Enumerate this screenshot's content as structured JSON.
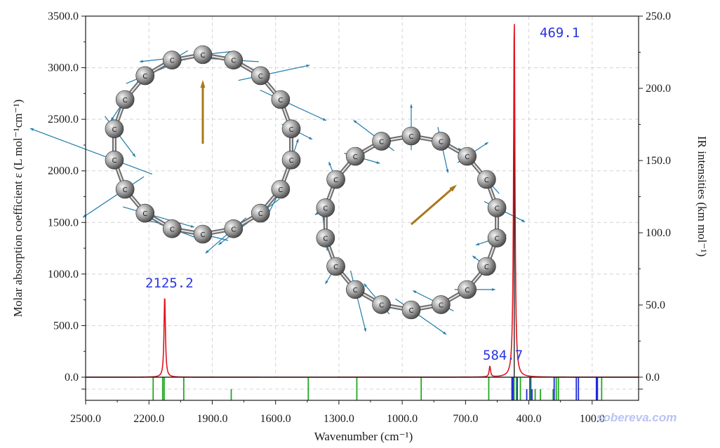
{
  "chart_data": {
    "type": "line",
    "xlabel": "Wavenumber (cm⁻¹)",
    "ylabel_left": "Molar absorption coefficient  ε (L mol⁻¹cm⁻¹)",
    "ylabel_right": "IR intensities (km mol⁻¹)",
    "xlim": [
      2500,
      -120
    ],
    "ylim_left": [
      0,
      3500
    ],
    "ylim_right": [
      0,
      250
    ],
    "x_ticks": [
      "2500.0",
      "2200.0",
      "1900.0",
      "1600.0",
      "1300.0",
      "1000.0",
      "700.0",
      "400.0",
      "100.0"
    ],
    "y_left_ticks": [
      "0.0",
      "500.0",
      "1000.0",
      "1500.0",
      "2000.0",
      "2500.0",
      "3000.0",
      "3500.0"
    ],
    "y_right_ticks": [
      "0.0",
      "50.0",
      "100.0",
      "150.0",
      "200.0",
      "250.0"
    ],
    "grid": true,
    "series": [
      {
        "color": "#e0141e",
        "peaks": [
          {
            "x": 2125.2,
            "y": 790
          },
          {
            "x": 584.7,
            "y": 105
          },
          {
            "x": 469.1,
            "y": 3500
          }
        ]
      }
    ],
    "ir_sticks": [
      {
        "x": 469.1,
        "y": 225,
        "color": "#000000"
      }
    ],
    "annotations": [
      "2125.2",
      "584.7",
      "469.1"
    ],
    "vibration_lines": {
      "green": [
        2180,
        2135,
        2128,
        2035,
        1810,
        1445,
        1215,
        910,
        590,
        470,
        458,
        440,
        390,
        370,
        345,
        285,
        270,
        260,
        55
      ],
      "blue": [
        480,
        475,
        455,
        410,
        395,
        385,
        280,
        175,
        165,
        80,
        75
      ],
      "tall": [
        2180,
        2135,
        2128,
        2035,
        1445,
        1215,
        910,
        590,
        480,
        475,
        470,
        458,
        455,
        440,
        395,
        390,
        280,
        270,
        260,
        175,
        165,
        80,
        75,
        55
      ]
    }
  },
  "watermark": "sobereva.com"
}
